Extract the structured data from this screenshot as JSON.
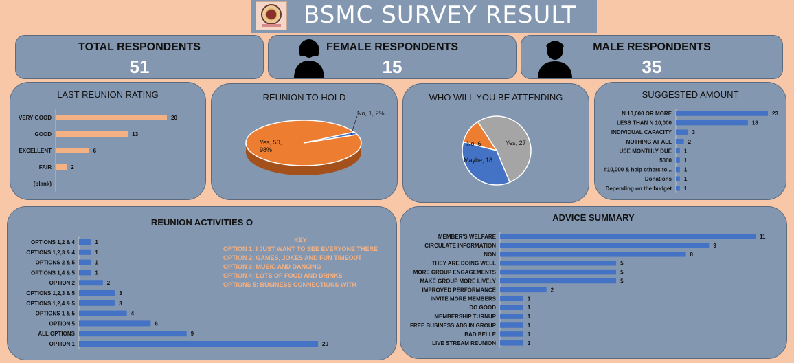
{
  "header": {
    "title": "BSMC SURVEY RESULT",
    "logo_icon": "bsmc-logo-icon"
  },
  "stats": {
    "total": {
      "label": "TOTAL RESPONDENTS",
      "value": "51"
    },
    "female": {
      "label": "FEMALE RESPONDENTS",
      "value": "15",
      "icon": "female-person-icon"
    },
    "male": {
      "label": "MALE RESPONDENTS",
      "value": "35",
      "icon": "male-person-icon"
    }
  },
  "colors": {
    "background": "#f8c7a8",
    "panel": "#8497b0",
    "peach_bar": "#f4b183",
    "blue_bar": "#4472c4",
    "orange": "#ed7d31",
    "grey": "#a5a5a5"
  },
  "key": {
    "title": "KEY",
    "lines": [
      "OPTION 1: I JUST WANT TO SEE EVERYONE THERE",
      "OPTION 2: GAMES, JOKES AND FUN TIMEOUT",
      "OPTION 3: MUSIC AND DANCING",
      "OPTION 4: LOTS OF FOOD AND DRINKS",
      "OPTIONS 5: BUSINESS CONNECTIONS WITH"
    ]
  },
  "chart_data": [
    {
      "id": "rating",
      "type": "bar",
      "orientation": "horizontal",
      "title": "LAST REUNION RATING",
      "categories": [
        "VERY GOOD",
        "GOOD",
        "EXCELLENT",
        "FAIR",
        "(blank)"
      ],
      "values": [
        20,
        13,
        6,
        2,
        null
      ],
      "value_labels": [
        "20",
        "13",
        "6",
        "2",
        ""
      ],
      "xlim": [
        0,
        20
      ],
      "color": "#f4b183"
    },
    {
      "id": "reunion",
      "type": "pie",
      "title": "REUNION TO HOLD",
      "slices": [
        {
          "label": "Yes, 50, 98%",
          "value": 50,
          "color": "#ed7d31"
        },
        {
          "label": "No, 1, 2%",
          "value": 1,
          "color": "#4472c4"
        }
      ]
    },
    {
      "id": "attending",
      "type": "pie",
      "title": "WHO WILL YOU BE ATTENDING",
      "slices": [
        {
          "label": "Yes, 27",
          "value": 27,
          "color": "#a5a5a5"
        },
        {
          "label": "Maybe, 18",
          "value": 18,
          "color": "#4472c4"
        },
        {
          "label": "No, 6",
          "value": 6,
          "color": "#ed7d31"
        }
      ]
    },
    {
      "id": "amount",
      "type": "bar",
      "orientation": "horizontal",
      "title": "SUGGESTED AMOUNT",
      "categories": [
        "N 10,000 OR MORE",
        "LESS THAN N 10,000",
        "INDIVIDUAL CAPACITY",
        "NOTHING AT ALL",
        "USE MONTHLY DUE",
        "5000",
        "#10,000 & help others to...",
        "Donations",
        "Depending on the budget"
      ],
      "values": [
        23,
        18,
        3,
        2,
        1,
        1,
        1,
        1,
        1
      ],
      "xlim": [
        0,
        23
      ],
      "color": "#4472c4"
    },
    {
      "id": "activities",
      "type": "bar",
      "orientation": "horizontal",
      "title": "REUNION ACTIVITIES O",
      "categories": [
        "OPTIONS 1,2 & 4",
        "OPTIONS 1,2,3 & 4",
        "OPTIONS 2 & 5",
        "OPTIONS 1,4 & 5",
        "OPTION 2",
        "OPTIONS 1,2,3 & 5",
        "OPTIONS 1,2,4 & 5",
        "OPTIONS 1 & 5",
        "OPTION 5",
        "ALL OPTIONS",
        "OPTION 1"
      ],
      "values": [
        1,
        1,
        1,
        1,
        2,
        3,
        3,
        4,
        6,
        9,
        20
      ],
      "xlim": [
        0,
        20
      ],
      "color": "#4472c4"
    },
    {
      "id": "advice",
      "type": "bar",
      "orientation": "horizontal",
      "title": "ADVICE SUMMARY",
      "categories": [
        "MEMBER'S WELFARE",
        "CIRCULATE INFORMATION",
        "NON",
        "THEY ARE DOING WELL",
        "MORE GROUP ENGAGEMENTS",
        "MAKE GROUP MORE LIVELY",
        "IMPROVED PERFORMANCE",
        "INVITE MORE MEMBERS",
        "DO GOOD",
        "MEMBERSHIP TURNUP",
        "FREE BUSINESS ADS IN GROUP",
        "BAD BELLE",
        "LIVE STREAM REUNION"
      ],
      "values": [
        11,
        9,
        8,
        5,
        5,
        5,
        2,
        1,
        1,
        1,
        1,
        1,
        1
      ],
      "xlim": [
        0,
        11
      ],
      "color": "#4472c4"
    }
  ]
}
